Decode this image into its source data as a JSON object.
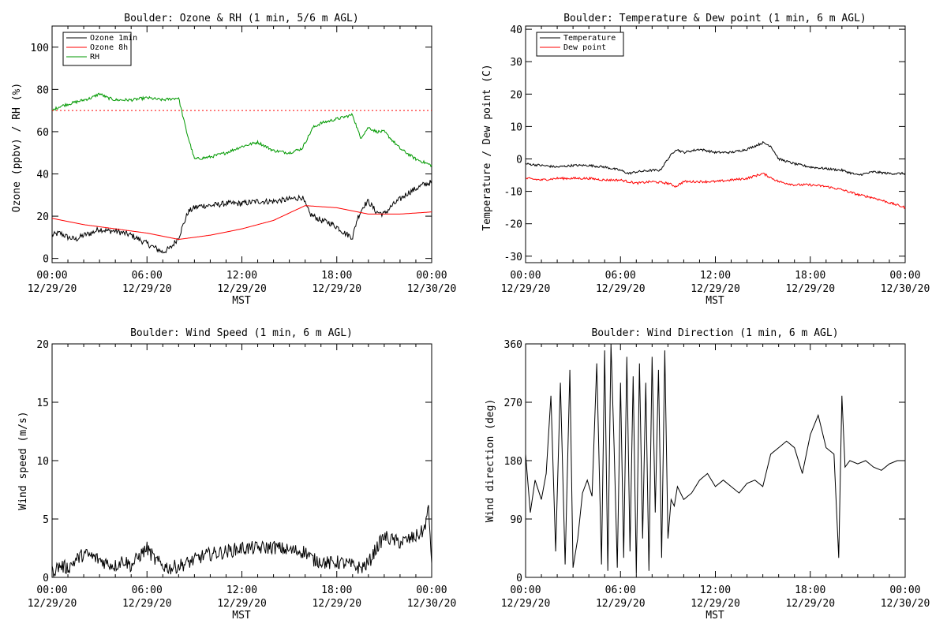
{
  "charts": [
    {
      "id": "ozone",
      "title": "Boulder: Ozone & RH (1 min, 5/6 m AGL)",
      "ylabel": "Ozone (ppbv) / RH (%)",
      "xlabel": "MST",
      "yticks": [
        "0",
        "20",
        "40",
        "60",
        "80",
        "100"
      ],
      "xticks_time": [
        "00:00",
        "06:00",
        "12:00",
        "18:00",
        "00:00"
      ],
      "xticks_date": [
        "12/29/20",
        "12/29/20",
        "12/29/20",
        "12/29/20",
        "12/30/20"
      ],
      "legend": [
        "Ozone 1min",
        "Ozone 8h",
        "RH"
      ]
    },
    {
      "id": "temp",
      "title": "Boulder: Temperature & Dew point (1 min, 6 m AGL)",
      "ylabel": "Temperature / Dew point (C)",
      "xlabel": "MST",
      "yticks": [
        "-30",
        "-20",
        "-10",
        "0",
        "10",
        "20",
        "30",
        "40"
      ],
      "xticks_time": [
        "00:00",
        "06:00",
        "12:00",
        "18:00",
        "00:00"
      ],
      "xticks_date": [
        "12/29/20",
        "12/29/20",
        "12/29/20",
        "12/29/20",
        "12/30/20"
      ],
      "legend": [
        "Temperature",
        "Dew point"
      ]
    },
    {
      "id": "wspd",
      "title": "Boulder: Wind Speed (1 min, 6 m AGL)",
      "ylabel": "Wind speed (m/s)",
      "xlabel": "MST",
      "yticks": [
        "0",
        "5",
        "10",
        "15",
        "20"
      ],
      "xticks_time": [
        "00:00",
        "06:00",
        "12:00",
        "18:00",
        "00:00"
      ],
      "xticks_date": [
        "12/29/20",
        "12/29/20",
        "12/29/20",
        "12/29/20",
        "12/30/20"
      ],
      "legend": []
    },
    {
      "id": "wdir",
      "title": "Boulder: Wind Direction (1 min, 6 m AGL)",
      "ylabel": "Wind direction (deg)",
      "xlabel": "MST",
      "yticks": [
        "0",
        "90",
        "180",
        "270",
        "360"
      ],
      "xticks_time": [
        "00:00",
        "06:00",
        "12:00",
        "18:00",
        "00:00"
      ],
      "xticks_date": [
        "12/29/20",
        "12/29/20",
        "12/29/20",
        "12/29/20",
        "12/30/20"
      ],
      "legend": []
    }
  ],
  "chart_data": [
    {
      "type": "line",
      "title": "Boulder: Ozone & RH (1 min, 5/6 m AGL)",
      "xlabel": "MST",
      "ylabel": "Ozone (ppbv) / RH (%)",
      "xlim": [
        0,
        24
      ],
      "ylim": [
        -2,
        110
      ],
      "legend_position": "top-left",
      "series": [
        {
          "name": "Ozone 1min",
          "color": "#000000",
          "x": [
            0,
            0.5,
            1,
            1.5,
            2,
            2.5,
            3,
            3.5,
            4,
            4.5,
            5,
            5.5,
            6,
            6.5,
            7,
            7.5,
            8,
            8.3,
            8.6,
            9,
            9.5,
            10,
            11,
            12,
            13,
            14,
            15,
            15.8,
            16.3,
            17,
            17.5,
            18,
            18.5,
            19,
            19.3,
            19.7,
            20,
            20.5,
            21,
            21.5,
            22,
            22.5,
            23,
            23.5,
            24
          ],
          "y": [
            11,
            12,
            10,
            9,
            11,
            12,
            14,
            13,
            13,
            12,
            11,
            9,
            7,
            5,
            3,
            5,
            10,
            16,
            22,
            24,
            25,
            25,
            26,
            26,
            27,
            27,
            28,
            29,
            21,
            18,
            17,
            15,
            12,
            10,
            19,
            25,
            27,
            22,
            21,
            25,
            28,
            31,
            33,
            35,
            36
          ]
        },
        {
          "name": "Ozone 8h",
          "color": "#ff0000",
          "x": [
            0,
            2,
            4,
            6,
            8,
            10,
            12,
            14,
            16,
            18,
            20,
            22,
            24
          ],
          "y": [
            19,
            16,
            14,
            12,
            9,
            11,
            14,
            18,
            25,
            24,
            21,
            21,
            22
          ]
        },
        {
          "name": "RH",
          "color": "#009900",
          "x": [
            0,
            0.5,
            1,
            1.5,
            2,
            2.5,
            3,
            3.5,
            4,
            5,
            6,
            7,
            8,
            8.5,
            9,
            10,
            11,
            12,
            13,
            14,
            15,
            15.8,
            16.5,
            17,
            18,
            19,
            19.5,
            20,
            20.5,
            21,
            22,
            23,
            24
          ],
          "y": [
            70,
            72,
            73,
            74,
            75,
            76,
            78,
            76,
            75,
            75,
            76,
            75,
            76,
            60,
            47,
            48,
            50,
            53,
            55,
            51,
            50,
            52,
            62,
            64,
            66,
            68,
            57,
            62,
            60,
            60,
            52,
            47,
            44
          ]
        },
        {
          "name": "",
          "color": "#ff0000",
          "style": "dotted",
          "x": [
            0,
            24
          ],
          "y": [
            70,
            70
          ]
        }
      ]
    },
    {
      "type": "line",
      "title": "Boulder: Temperature & Dew point (1 min, 6 m AGL)",
      "xlabel": "MST",
      "ylabel": "Temperature / Dew point (C)",
      "xlim": [
        0,
        24
      ],
      "ylim": [
        -32,
        41
      ],
      "legend_position": "top-left",
      "series": [
        {
          "name": "Temperature",
          "color": "#000000",
          "x": [
            0,
            1,
            2,
            3,
            4,
            5,
            6,
            6.5,
            7,
            8,
            8.5,
            9,
            9.5,
            10,
            11,
            12,
            13,
            14,
            15,
            15.5,
            16,
            17,
            18,
            19,
            20,
            21,
            22,
            23,
            24
          ],
          "y": [
            -1.5,
            -2,
            -2.5,
            -2,
            -2,
            -2.5,
            -3.5,
            -4.5,
            -4,
            -3.5,
            -3.5,
            0,
            3,
            2,
            3,
            2,
            2,
            3,
            5,
            4,
            0,
            -1.5,
            -2.5,
            -3,
            -3.5,
            -5,
            -4,
            -4.5,
            -4.5
          ]
        },
        {
          "name": "Dew point",
          "color": "#ff0000",
          "x": [
            0,
            1,
            2,
            3,
            4,
            5,
            6,
            7,
            8,
            9,
            9.5,
            10,
            11,
            12,
            13,
            14,
            15,
            16,
            17,
            18,
            19,
            20,
            21,
            22,
            23,
            24
          ],
          "y": [
            -6,
            -6.5,
            -6,
            -6,
            -6,
            -6.5,
            -6.5,
            -7.5,
            -7,
            -7.5,
            -8.5,
            -7,
            -7,
            -7,
            -6.5,
            -6,
            -4.5,
            -7,
            -8,
            -8,
            -8.5,
            -9.5,
            -11,
            -12,
            -13.5,
            -15
          ]
        }
      ]
    },
    {
      "type": "line",
      "title": "Boulder: Wind Speed (1 min, 6 m AGL)",
      "xlabel": "MST",
      "ylabel": "Wind speed (m/s)",
      "xlim": [
        0,
        24
      ],
      "ylim": [
        0,
        20
      ],
      "series": [
        {
          "name": "",
          "color": "#000000",
          "x": [
            0,
            0.5,
            1,
            1.5,
            2,
            2.5,
            3,
            3.5,
            4,
            4.5,
            5,
            5.5,
            6,
            6.5,
            7,
            7.5,
            8,
            8.5,
            9,
            9.5,
            10,
            11,
            12,
            13,
            14,
            15,
            16,
            16.5,
            17,
            17.5,
            18,
            18.5,
            19,
            19.5,
            20,
            20.5,
            21,
            21.5,
            22,
            22.5,
            23,
            23.5,
            23.8,
            24
          ],
          "y": [
            0.5,
            1,
            0.8,
            1.5,
            2,
            1.8,
            1.5,
            1.2,
            1,
            1.5,
            1,
            1.8,
            2.5,
            1.5,
            1,
            0.8,
            1,
            1.2,
            1.5,
            1.8,
            2,
            2.2,
            2.5,
            2.5,
            2.6,
            2.3,
            2.2,
            1.5,
            1.4,
            1.2,
            1.3,
            1.2,
            1,
            0.8,
            1.2,
            2.5,
            3.5,
            3.2,
            3,
            3.2,
            3.5,
            4,
            5.8,
            1.5
          ]
        }
      ]
    },
    {
      "type": "line",
      "title": "Boulder: Wind Direction (1 min, 6 m AGL)",
      "xlabel": "MST",
      "ylabel": "Wind direction (deg)",
      "xlim": [
        0,
        24
      ],
      "ylim": [
        0,
        360
      ],
      "series": [
        {
          "name": "",
          "color": "#000000",
          "x": [
            0,
            0.3,
            0.6,
            1,
            1.3,
            1.6,
            1.9,
            2.2,
            2.5,
            2.8,
            3,
            3.3,
            3.6,
            3.9,
            4.2,
            4.5,
            4.8,
            5,
            5.2,
            5.4,
            5.6,
            5.8,
            6,
            6.2,
            6.4,
            6.6,
            6.8,
            7,
            7.2,
            7.4,
            7.6,
            7.8,
            8,
            8.2,
            8.4,
            8.6,
            8.8,
            9,
            9.2,
            9.4,
            9.6,
            10,
            10.5,
            11,
            11.5,
            12,
            12.5,
            13,
            13.5,
            14,
            14.5,
            15,
            15.5,
            16,
            16.5,
            17,
            17.5,
            18,
            18.5,
            19,
            19.5,
            19.8,
            20,
            20.2,
            20.5,
            21,
            21.5,
            22,
            22.5,
            23,
            23.5,
            24
          ],
          "y": [
            190,
            100,
            150,
            120,
            160,
            280,
            40,
            300,
            20,
            320,
            15,
            60,
            130,
            150,
            125,
            330,
            20,
            350,
            10,
            360,
            200,
            15,
            300,
            30,
            340,
            40,
            310,
            5,
            330,
            60,
            300,
            10,
            340,
            100,
            320,
            30,
            350,
            60,
            120,
            110,
            140,
            120,
            130,
            150,
            160,
            140,
            150,
            140,
            130,
            145,
            150,
            140,
            190,
            200,
            210,
            200,
            160,
            220,
            250,
            200,
            190,
            30,
            280,
            170,
            180,
            175,
            180,
            170,
            165,
            175,
            180,
            180
          ]
        }
      ]
    }
  ]
}
